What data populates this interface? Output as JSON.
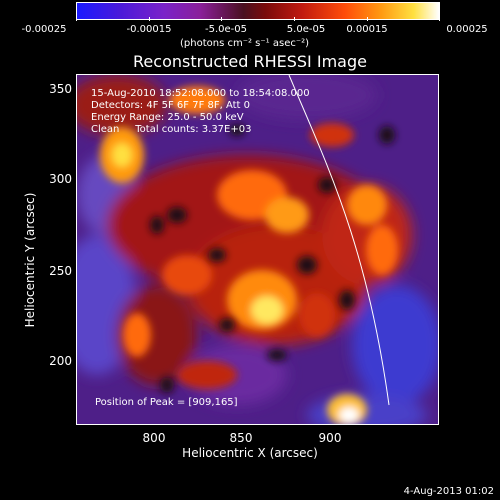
{
  "colorbar": {
    "ticks": [
      "-0.00025",
      "-0.00015",
      "-5.0e-05",
      "5.0e-05",
      "0.00015",
      "0.00025"
    ],
    "unit_label": "(photons cm⁻² s⁻¹ asec⁻²)"
  },
  "title": "Reconstructed RHESSI Image",
  "info": {
    "time": "15-Aug-2010 18:52:08.000 to 18:54:08.000",
    "detectors": "Detectors: 4F 5F 6F 7F 8F, Att 0",
    "energy": "Energy Range: 25.0 - 50.0 keV",
    "clean": "Clean     Total counts: 3.37E+03",
    "peak": "Position of Peak = [909,165]"
  },
  "axes": {
    "xlabel": "Heliocentric X (arcsec)",
    "ylabel": "Heliocentric Y (arcsec)",
    "xticks": [
      "800",
      "850",
      "900"
    ],
    "yticks": [
      "350",
      "300",
      "250",
      "200"
    ]
  },
  "timestamp": "4-Aug-2013 01:02"
}
